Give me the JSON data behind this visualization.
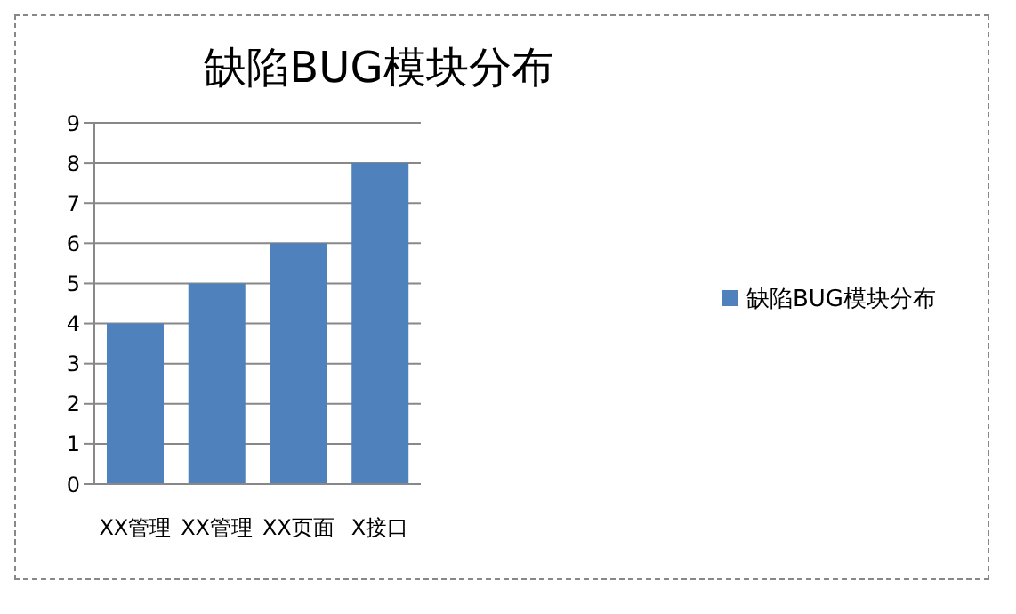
{
  "chart_data": {
    "type": "bar",
    "title": "缺陷BUG模块分布",
    "categories": [
      "XX管理",
      "XX管理",
      "XX页面",
      "X接口"
    ],
    "series": [
      {
        "name": "缺陷BUG模块分布",
        "color": "#4f81bd",
        "values": [
          4,
          5,
          6,
          8
        ]
      }
    ],
    "ylim": [
      0,
      9
    ],
    "yticks": [
      0,
      1,
      2,
      3,
      4,
      5,
      6,
      7,
      8,
      9
    ],
    "grid": "y",
    "legend": "right"
  }
}
